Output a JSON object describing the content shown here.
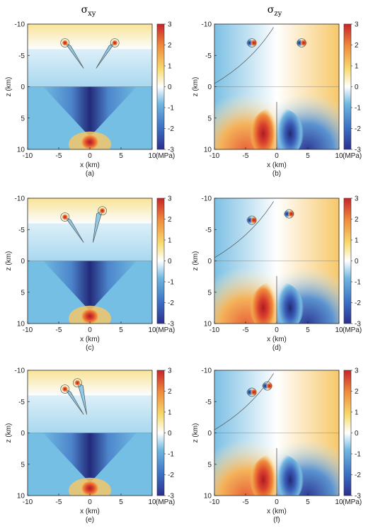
{
  "figure": {
    "column_titles": [
      {
        "main": "σ",
        "sub": "xy"
      },
      {
        "main": "σ",
        "sub": "zy"
      }
    ],
    "colorbar": {
      "ticks": [
        3,
        2,
        1,
        0,
        -1,
        -2,
        -3
      ],
      "unit": "(MPa)",
      "range": [
        -3,
        3
      ],
      "colors": [
        "#2c2f8f",
        "#3b6fc4",
        "#6db6e0",
        "#ffffff",
        "#f7dc6f",
        "#ef8a3a",
        "#c8232a"
      ]
    }
  },
  "chart_data": [
    {
      "type": "heatmap",
      "panel_label": "(a)",
      "component": "σxy",
      "xlabel": "x (km)",
      "ylabel": "z (km)",
      "xlim": [
        -10,
        10
      ],
      "zlim": [
        -10,
        10
      ],
      "z_inverted": true,
      "xticks": [
        -10,
        -5,
        0,
        5,
        10
      ],
      "zticks": [
        -10,
        -5,
        0,
        5,
        10
      ],
      "clim": [
        -3,
        3
      ],
      "unit": "MPa",
      "fault_tips": [
        {
          "x": -4,
          "z": -7
        },
        {
          "x": 4,
          "z": -7
        }
      ],
      "source": {
        "x": 0,
        "z": 8.5
      }
    },
    {
      "type": "heatmap",
      "panel_label": "(b)",
      "component": "σzy",
      "xlabel": "x (km)",
      "ylabel": "z (km)",
      "xlim": [
        -10,
        10
      ],
      "zlim": [
        -10,
        10
      ],
      "z_inverted": true,
      "xticks": [
        -10,
        -5,
        0,
        5,
        10
      ],
      "zticks": [
        -10,
        -5,
        0,
        5,
        10
      ],
      "clim": [
        -3,
        3
      ],
      "unit": "MPa",
      "fault_tips": [
        {
          "x": -4,
          "z": -7
        },
        {
          "x": 4,
          "z": -7
        }
      ],
      "source": {
        "x": 0,
        "z": 7.5
      }
    },
    {
      "type": "heatmap",
      "panel_label": "(c)",
      "component": "σxy",
      "xlabel": "x (km)",
      "ylabel": "z (km)",
      "xlim": [
        -10,
        10
      ],
      "zlim": [
        -10,
        10
      ],
      "z_inverted": true,
      "xticks": [
        -10,
        -5,
        0,
        5,
        10
      ],
      "zticks": [
        -10,
        -5,
        0,
        5,
        10
      ],
      "clim": [
        -3,
        3
      ],
      "unit": "MPa",
      "fault_tips": [
        {
          "x": -4,
          "z": -7
        },
        {
          "x": 2,
          "z": -8
        }
      ],
      "source": {
        "x": 0,
        "z": 8.5
      }
    },
    {
      "type": "heatmap",
      "panel_label": "(d)",
      "component": "σzy",
      "xlabel": "x (km)",
      "ylabel": "z (km)",
      "xlim": [
        -10,
        10
      ],
      "zlim": [
        -10,
        10
      ],
      "z_inverted": true,
      "xticks": [
        -10,
        -5,
        0,
        5,
        10
      ],
      "zticks": [
        -10,
        -5,
        0,
        5,
        10
      ],
      "clim": [
        -3,
        3
      ],
      "unit": "MPa",
      "fault_tips": [
        {
          "x": -4,
          "z": -6.5
        },
        {
          "x": 2,
          "z": -7.5
        }
      ],
      "source": {
        "x": 0,
        "z": 7.5
      }
    },
    {
      "type": "heatmap",
      "panel_label": "(e)",
      "component": "σxy",
      "xlabel": "x (km)",
      "ylabel": "z (km)",
      "xlim": [
        -10,
        10
      ],
      "zlim": [
        -10,
        10
      ],
      "z_inverted": true,
      "xticks": [
        -10,
        -5,
        0,
        5,
        10
      ],
      "zticks": [
        -10,
        -5,
        0,
        5,
        10
      ],
      "clim": [
        -3,
        3
      ],
      "unit": "MPa",
      "fault_tips": [
        {
          "x": -4,
          "z": -7
        },
        {
          "x": -2,
          "z": -8
        }
      ],
      "source": {
        "x": 0,
        "z": 8.5
      }
    },
    {
      "type": "heatmap",
      "panel_label": "(f)",
      "component": "σzy",
      "xlabel": "x (km)",
      "ylabel": "z (km)",
      "xlim": [
        -10,
        10
      ],
      "zlim": [
        -10,
        10
      ],
      "z_inverted": true,
      "xticks": [
        -10,
        -5,
        0,
        5,
        10
      ],
      "zticks": [
        -10,
        -5,
        0,
        5,
        10
      ],
      "clim": [
        -3,
        3
      ],
      "unit": "MPa",
      "fault_tips": [
        {
          "x": -4,
          "z": -6.5
        },
        {
          "x": -1.5,
          "z": -7.5
        }
      ],
      "source": {
        "x": 0,
        "z": 7.5
      }
    }
  ]
}
